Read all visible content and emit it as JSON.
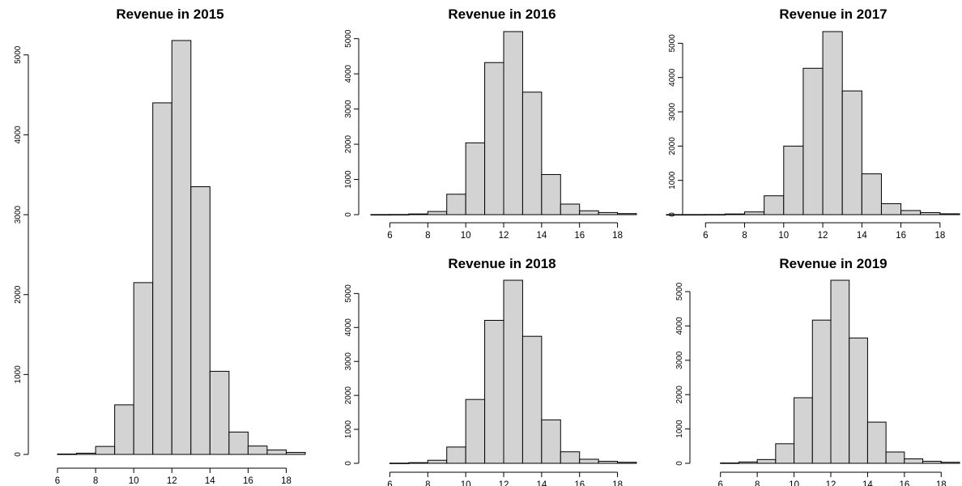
{
  "chart_data": [
    {
      "type": "bar",
      "title": "Revenue in 2015",
      "xlabel": "",
      "ylabel": "",
      "bin_edges": [
        6,
        7,
        8,
        9,
        10,
        11,
        12,
        13,
        14,
        15,
        16,
        17,
        18,
        19
      ],
      "values": [
        5,
        15,
        100,
        620,
        2150,
        4400,
        5180,
        3350,
        1040,
        280,
        105,
        55,
        25
      ],
      "xlim": [
        6,
        19
      ],
      "ylim": [
        0,
        5180
      ],
      "xticks": [
        6,
        8,
        10,
        12,
        14,
        16,
        18
      ],
      "yticks": [
        0,
        1000,
        2000,
        3000,
        4000,
        5000
      ],
      "bar_color": "#d3d3d3",
      "grid": false
    },
    {
      "type": "bar",
      "title": "Revenue in 2016",
      "xlabel": "",
      "ylabel": "",
      "bin_edges": [
        5,
        6,
        7,
        8,
        9,
        10,
        11,
        12,
        13,
        14,
        15,
        16,
        17,
        18,
        19
      ],
      "values": [
        3,
        5,
        20,
        90,
        580,
        2040,
        4320,
        5200,
        3480,
        1140,
        300,
        110,
        60,
        30
      ],
      "xlim": [
        5,
        19
      ],
      "ylim": [
        0,
        5200
      ],
      "xticks": [
        6,
        8,
        10,
        12,
        14,
        16,
        18
      ],
      "yticks": [
        0,
        1000,
        2000,
        3000,
        4000,
        5000
      ],
      "bar_color": "#d3d3d3",
      "grid": false
    },
    {
      "type": "bar",
      "title": "Revenue in 2017",
      "xlabel": "",
      "ylabel": "",
      "bin_edges": [
        4,
        5,
        6,
        7,
        8,
        9,
        10,
        11,
        12,
        13,
        14,
        15,
        16,
        17,
        18,
        19
      ],
      "values": [
        2,
        3,
        5,
        20,
        80,
        550,
        2000,
        4270,
        5340,
        3610,
        1190,
        320,
        120,
        60,
        25
      ],
      "xlim": [
        4,
        19
      ],
      "ylim": [
        0,
        5340
      ],
      "xticks": [
        6,
        8,
        10,
        12,
        14,
        16,
        18
      ],
      "yticks": [
        0,
        1000,
        2000,
        3000,
        4000,
        5000
      ],
      "bar_color": "#d3d3d3",
      "grid": false
    },
    {
      "type": "bar",
      "title": "Revenue in 2018",
      "xlabel": "",
      "ylabel": "",
      "bin_edges": [
        6,
        7,
        8,
        9,
        10,
        11,
        12,
        13,
        14,
        15,
        16,
        17,
        18,
        19
      ],
      "values": [
        5,
        20,
        90,
        480,
        1880,
        4210,
        5390,
        3740,
        1280,
        340,
        120,
        60,
        30
      ],
      "xlim": [
        5,
        19
      ],
      "ylim": [
        0,
        5390
      ],
      "xticks": [
        6,
        8,
        10,
        12,
        14,
        16,
        18
      ],
      "yticks": [
        0,
        1000,
        2000,
        3000,
        4000,
        5000
      ],
      "bar_color": "#d3d3d3",
      "grid": false
    },
    {
      "type": "bar",
      "title": "Revenue in 2019",
      "xlabel": "",
      "ylabel": "",
      "bin_edges": [
        6,
        7,
        8,
        9,
        10,
        11,
        12,
        13,
        14,
        15,
        16,
        17,
        18,
        19
      ],
      "values": [
        10,
        40,
        110,
        570,
        1910,
        4170,
        5330,
        3650,
        1200,
        330,
        130,
        60,
        30
      ],
      "xlim": [
        5,
        19
      ],
      "ylim": [
        0,
        5330
      ],
      "xticks": [
        6,
        8,
        10,
        12,
        14,
        16,
        18
      ],
      "yticks": [
        0,
        1000,
        2000,
        3000,
        4000,
        5000
      ],
      "bar_color": "#d3d3d3",
      "grid": false
    }
  ]
}
